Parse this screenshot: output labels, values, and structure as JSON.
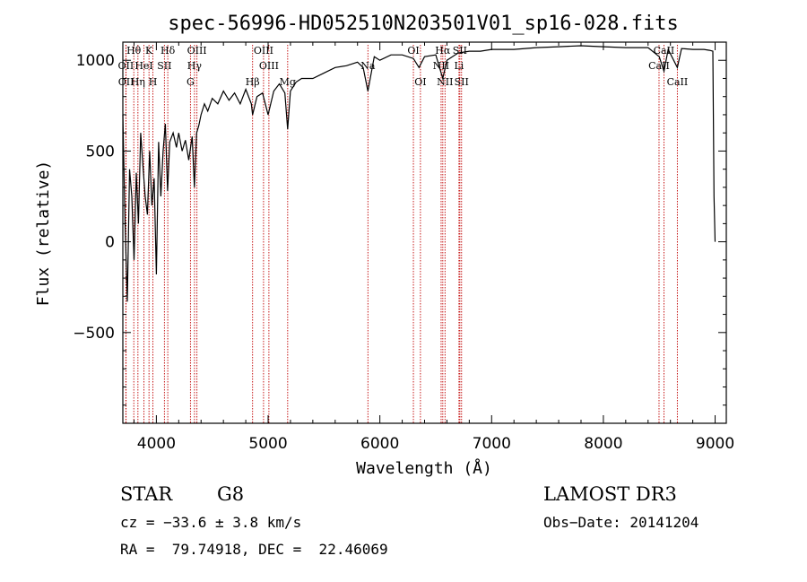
{
  "chart_data": {
    "type": "line",
    "title": "spec-56996-HD052510N203501V01_sp16-028.fits",
    "xlabel": "Wavelength (Å)",
    "ylabel": "Flux (relative)",
    "xlim": [
      3700,
      9100
    ],
    "ylim": [
      -1000,
      1100
    ],
    "xticks": [
      4000,
      5000,
      6000,
      7000,
      8000,
      9000
    ],
    "yticks": [
      -500,
      0,
      500,
      1000
    ],
    "series": [
      {
        "name": "flux",
        "x": [
          3700,
          3720,
          3740,
          3760,
          3780,
          3800,
          3820,
          3840,
          3860,
          3880,
          3900,
          3920,
          3940,
          3960,
          3980,
          4000,
          4020,
          4040,
          4060,
          4080,
          4100,
          4120,
          4150,
          4180,
          4200,
          4230,
          4260,
          4290,
          4320,
          4340,
          4360,
          4380,
          4400,
          4430,
          4460,
          4500,
          4550,
          4600,
          4650,
          4700,
          4750,
          4800,
          4850,
          4861,
          4900,
          4950,
          5000,
          5050,
          5100,
          5150,
          5175,
          5200,
          5250,
          5300,
          5400,
          5500,
          5600,
          5700,
          5800,
          5850,
          5893,
          5950,
          6000,
          6100,
          6200,
          6300,
          6350,
          6400,
          6500,
          6563,
          6600,
          6700,
          6800,
          6900,
          7000,
          7200,
          7400,
          7600,
          7800,
          8000,
          8200,
          8400,
          8500,
          8542,
          8580,
          8662,
          8700,
          8800,
          8900,
          8950,
          8980,
          8990,
          9000
        ],
        "values": [
          700,
          100,
          -330,
          400,
          250,
          -100,
          380,
          100,
          600,
          420,
          250,
          150,
          500,
          200,
          350,
          -180,
          550,
          250,
          500,
          650,
          280,
          550,
          600,
          520,
          600,
          500,
          560,
          450,
          580,
          300,
          600,
          640,
          700,
          760,
          720,
          790,
          760,
          830,
          780,
          820,
          760,
          840,
          760,
          700,
          800,
          820,
          700,
          830,
          870,
          820,
          620,
          830,
          880,
          900,
          900,
          930,
          960,
          970,
          990,
          960,
          830,
          1020,
          1000,
          1030,
          1030,
          1010,
          960,
          1020,
          1030,
          900,
          1000,
          1040,
          1050,
          1050,
          1060,
          1060,
          1070,
          1075,
          1080,
          1075,
          1070,
          1070,
          1020,
          940,
          1060,
          960,
          1065,
          1060,
          1060,
          1055,
          1050,
          250,
          0
        ]
      }
    ],
    "lines": [
      {
        "name": "Hθ",
        "wl": 3798,
        "row": 0
      },
      {
        "name": "OII",
        "wl": 3727,
        "row": 1
      },
      {
        "name": "OII",
        "wl": 3729,
        "row": 2
      },
      {
        "name": "Hη",
        "wl": 3835,
        "row": 2
      },
      {
        "name": "HeI",
        "wl": 3889,
        "row": 1
      },
      {
        "name": "K",
        "wl": 3934,
        "row": 0
      },
      {
        "name": "H",
        "wl": 3969,
        "row": 2
      },
      {
        "name": "SII",
        "wl": 4072,
        "row": 1
      },
      {
        "name": "Hδ",
        "wl": 4102,
        "row": 0
      },
      {
        "name": "OIII",
        "wl": 4363,
        "row": 0
      },
      {
        "name": "Hγ",
        "wl": 4341,
        "row": 1
      },
      {
        "name": "G",
        "wl": 4305,
        "row": 2
      },
      {
        "name": "OIII",
        "wl": 4959,
        "row": 0
      },
      {
        "name": "OIII",
        "wl": 5007,
        "row": 1
      },
      {
        "name": "Hβ",
        "wl": 4861,
        "row": 2
      },
      {
        "name": "Mg",
        "wl": 5175,
        "row": 2
      },
      {
        "name": "Na",
        "wl": 5893,
        "row": 1
      },
      {
        "name": "OI",
        "wl": 6300,
        "row": 0
      },
      {
        "name": "OI",
        "wl": 6363,
        "row": 2
      },
      {
        "name": "Hα",
        "wl": 6563,
        "row": 0
      },
      {
        "name": "NII",
        "wl": 6548,
        "row": 1
      },
      {
        "name": "NII",
        "wl": 6583,
        "row": 2
      },
      {
        "name": "SII",
        "wl": 6716,
        "row": 0
      },
      {
        "name": "Li",
        "wl": 6708,
        "row": 1
      },
      {
        "name": "SII",
        "wl": 6731,
        "row": 2
      },
      {
        "name": "CaII",
        "wl": 8542,
        "row": 0
      },
      {
        "name": "CaII",
        "wl": 8498,
        "row": 1
      },
      {
        "name": "CaII",
        "wl": 8662,
        "row": 2
      }
    ]
  },
  "info": {
    "object_class": "STAR",
    "subclass": "G8",
    "survey": "LAMOST DR3",
    "velocity": "cz = −33.6 ± 3.8 km/s",
    "obs_date": "Obs−Date: 20141204",
    "coords": "RA =  79.74918, DEC =  22.46069"
  },
  "colors": {
    "spectrum": "#000000",
    "line_marker": "#c00000",
    "axes": "#000000"
  }
}
